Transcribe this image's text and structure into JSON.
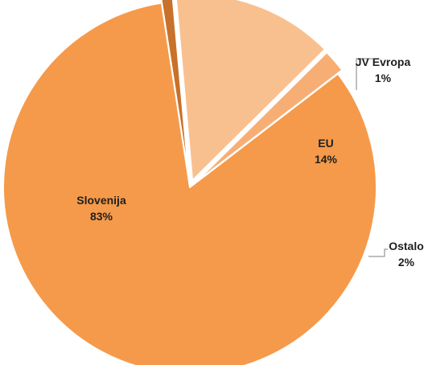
{
  "chart_data": {
    "type": "pie",
    "title": "",
    "slices": [
      {
        "label": "Slovenija",
        "value": 83,
        "value_label": "83%",
        "color": "#F59A4A"
      },
      {
        "label": "JV Evropa",
        "value": 1,
        "value_label": "1%",
        "color": "#C8712A"
      },
      {
        "label": "EU",
        "value": 14,
        "value_label": "14%",
        "color": "#F9C08F"
      },
      {
        "label": "Ostalo",
        "value": 2,
        "value_label": "2%",
        "color": "#F7AE74"
      }
    ],
    "legend": "none",
    "exploded_slices": [
      "JV Evropa",
      "EU",
      "Ostalo"
    ]
  }
}
